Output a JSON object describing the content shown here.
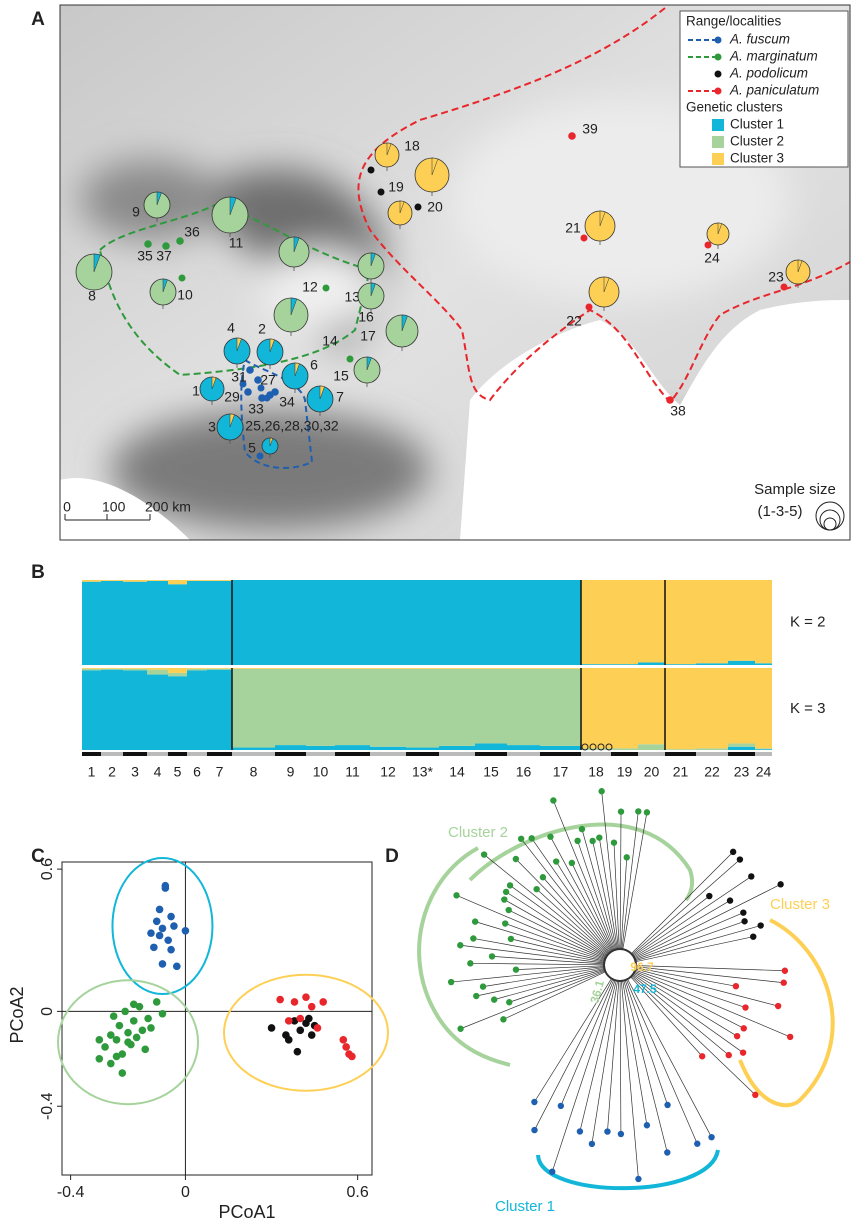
{
  "panel_labels": [
    "A",
    "B",
    "C",
    "D"
  ],
  "map": {
    "legend": {
      "range_title": "Range/localities",
      "species": [
        "A. fuscum",
        "A. marginatum",
        "A. podolicum",
        "A. paniculatum"
      ],
      "species_colors": [
        "#1f5fb0",
        "#2e9a3c",
        "#111111",
        "#e8262b"
      ],
      "clusters_title": "Genetic clusters",
      "clusters": [
        "Cluster 1",
        "Cluster 2",
        "Cluster 3"
      ],
      "cluster_colors": [
        "#12b6d8",
        "#a6d39c",
        "#fdd055"
      ]
    },
    "localities": [
      "1",
      "2",
      "3",
      "4",
      "5",
      "6",
      "7",
      "8",
      "9",
      "10",
      "11",
      "12",
      "13*",
      "14",
      "15",
      "16",
      "17",
      "18",
      "19",
      "20",
      "21",
      "22",
      "23",
      "24",
      "25,26,28,30,32",
      "27",
      "29",
      "31",
      "33",
      "34",
      "35",
      "36",
      "37",
      "38",
      "39"
    ],
    "scale_labels": [
      0,
      100,
      "200 km"
    ],
    "size_legend": [
      "Sample size",
      "(1-3-5)"
    ]
  },
  "chart_data": [
    {
      "type": "stacked_bar",
      "label": "K = 2",
      "ylim": [
        0,
        1
      ],
      "categories": [
        "1",
        "2",
        "3",
        "4",
        "5",
        "6",
        "7",
        "8",
        "9",
        "10",
        "11",
        "12",
        "13*",
        "14",
        "15",
        "16",
        "17",
        "18",
        "19",
        "20",
        "21",
        "22",
        "23",
        "24"
      ],
      "series": [
        {
          "color": "#12b6d8",
          "values": [
            0.98,
            0.99,
            0.98,
            0.99,
            0.95,
            0.99,
            0.99,
            1,
            1,
            1,
            1,
            1,
            1,
            1,
            1,
            1,
            1,
            0.01,
            0.01,
            0.03,
            0.01,
            0.02,
            0.05,
            0.02
          ]
        },
        {
          "color": "#fdd055",
          "values": [
            0.02,
            0.01,
            0.02,
            0.01,
            0.05,
            0.01,
            0.01,
            0,
            0,
            0,
            0,
            0,
            0,
            0,
            0,
            0,
            0,
            0.99,
            0.99,
            0.97,
            0.99,
            0.98,
            0.95,
            0.98
          ]
        }
      ]
    },
    {
      "type": "stacked_bar",
      "label": "K = 3",
      "ylim": [
        0,
        1
      ],
      "categories": [
        "1",
        "2",
        "3",
        "4",
        "5",
        "6",
        "7",
        "8",
        "9",
        "10",
        "11",
        "12",
        "13*",
        "14",
        "15",
        "16",
        "17",
        "18",
        "19",
        "20",
        "21",
        "22",
        "23",
        "24"
      ],
      "series": [
        {
          "color": "#12b6d8",
          "values": [
            0.97,
            0.98,
            0.97,
            0.92,
            0.9,
            0.97,
            0.98,
            0.03,
            0.06,
            0.05,
            0.06,
            0.04,
            0.03,
            0.05,
            0.08,
            0.06,
            0.05,
            0,
            0,
            0,
            0,
            0,
            0.04,
            0.01
          ]
        },
        {
          "color": "#a6d39c",
          "values": [
            0.02,
            0.01,
            0.02,
            0.06,
            0.04,
            0.02,
            0.01,
            0.96,
            0.93,
            0.94,
            0.93,
            0.95,
            0.96,
            0.94,
            0.91,
            0.93,
            0.94,
            0.02,
            0.02,
            0.07,
            0.01,
            0.02,
            0.04,
            0.01
          ]
        },
        {
          "color": "#fdd055",
          "values": [
            0.01,
            0.01,
            0.01,
            0.02,
            0.06,
            0.01,
            0.01,
            0.01,
            0.01,
            0.01,
            0.01,
            0.01,
            0.01,
            0.01,
            0.01,
            0.01,
            0.01,
            0.98,
            0.98,
            0.93,
            0.99,
            0.98,
            0.92,
            0.98
          ]
        }
      ]
    },
    {
      "type": "scatter",
      "xlabel": "PCoA1",
      "ylabel": "PCoA2",
      "xlim": [
        -0.43,
        0.65
      ],
      "ylim": [
        -0.69,
        0.63
      ],
      "xticks": [
        -0.4,
        0,
        0.6
      ],
      "yticks": [
        -0.4,
        0,
        0.6
      ],
      "series": [
        {
          "color": "#1f5fb0",
          "x": [
            -0.07,
            -0.07,
            -0.09,
            -0.1,
            -0.05,
            -0.08,
            -0.12,
            -0.06,
            0.0,
            -0.11,
            -0.05,
            -0.08,
            -0.03,
            -0.09,
            -0.04
          ],
          "values": [
            0.53,
            0.52,
            0.43,
            0.38,
            0.4,
            0.35,
            0.33,
            0.3,
            0.34,
            0.27,
            0.26,
            0.2,
            0.19,
            0.32,
            0.36
          ]
        },
        {
          "color": "#2e9a3c",
          "x": [
            -0.3,
            -0.28,
            -0.26,
            -0.25,
            -0.24,
            -0.23,
            -0.22,
            -0.21,
            -0.2,
            -0.19,
            -0.18,
            -0.17,
            -0.16,
            -0.15,
            -0.14,
            -0.13,
            -0.12,
            -0.22,
            -0.26,
            -0.18,
            -0.1,
            -0.08,
            -0.3,
            -0.24,
            -0.2
          ],
          "values": [
            -0.2,
            -0.15,
            -0.1,
            -0.02,
            -0.12,
            -0.06,
            -0.18,
            0.0,
            -0.09,
            -0.14,
            -0.04,
            -0.11,
            0.02,
            -0.08,
            -0.16,
            -0.03,
            -0.07,
            -0.26,
            -0.22,
            0.03,
            0.04,
            -0.01,
            -0.12,
            -0.19,
            -0.13
          ]
        },
        {
          "color": "#111111",
          "x": [
            0.3,
            0.36,
            0.38,
            0.4,
            0.42,
            0.44,
            0.45,
            0.39,
            0.35,
            0.43
          ],
          "values": [
            -0.07,
            -0.12,
            -0.04,
            -0.08,
            -0.05,
            -0.1,
            -0.06,
            -0.17,
            -0.1,
            -0.03
          ]
        },
        {
          "color": "#e8262b",
          "x": [
            0.33,
            0.36,
            0.38,
            0.4,
            0.42,
            0.44,
            0.46,
            0.48,
            0.56,
            0.57,
            0.58,
            0.55
          ],
          "values": [
            0.05,
            -0.04,
            0.04,
            -0.03,
            0.06,
            0.02,
            -0.07,
            0.04,
            -0.15,
            -0.18,
            -0.19,
            -0.12
          ]
        }
      ]
    }
  ],
  "tree": {
    "cluster_labels": [
      "Cluster 2",
      "Cluster 3",
      "Cluster 1"
    ],
    "support": [
      96.7,
      36.1,
      47.5
    ]
  }
}
